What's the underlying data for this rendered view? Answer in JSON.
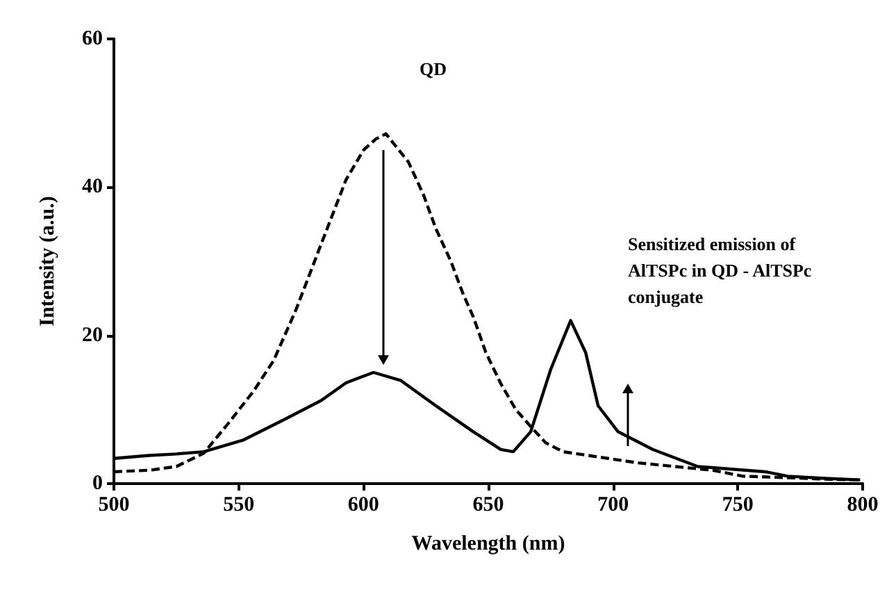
{
  "chart_data": {
    "type": "line",
    "xlabel": "Wavelength (nm)",
    "ylabel": "Intensity (a.u.)",
    "xlim": [
      500,
      800
    ],
    "xticks": [
      500,
      550,
      600,
      650,
      700,
      750,
      800
    ],
    "ylim": [
      0,
      60
    ],
    "yticks": [
      0,
      20,
      40,
      60
    ],
    "grid": false,
    "marker": "none",
    "series": [
      {
        "color": "#000000",
        "line_style": "dashed",
        "x": [
          500,
          514,
          525,
          536,
          546,
          556,
          564,
          573,
          582,
          593,
          600,
          605,
          609,
          613,
          618,
          624,
          629,
          635,
          640,
          644,
          649,
          655,
          661,
          667,
          673,
          680,
          690,
          698,
          710,
          725,
          740,
          752,
          770,
          785,
          799
        ],
        "values": [
          1.6,
          1.8,
          2.3,
          4.1,
          8.2,
          12.5,
          16.6,
          23.5,
          31.4,
          41,
          45,
          46.5,
          47.2,
          45.5,
          43.4,
          39,
          34.4,
          30,
          25.5,
          22.5,
          17.7,
          13.5,
          10,
          7.7,
          5.5,
          4.3,
          3.8,
          3.4,
          2.8,
          2.3,
          1.8,
          1,
          0.8,
          0.6,
          0.5
        ]
      },
      {
        "color": "#000000",
        "line_style": "solid",
        "x": [
          500,
          514,
          525,
          536,
          552,
          568,
          583,
          593,
          604,
          615,
          629,
          644,
          655,
          660,
          667,
          675,
          683,
          689,
          694,
          702,
          716,
          734,
          761,
          770,
          785,
          799
        ],
        "values": [
          3.4,
          3.8,
          4,
          4.3,
          5.9,
          8.6,
          11.2,
          13.6,
          15,
          13.9,
          10.5,
          7,
          4.6,
          4.3,
          7,
          15.4,
          22,
          17.7,
          10.5,
          7,
          4.6,
          2.3,
          1.6,
          1,
          0.7,
          0.5
        ]
      }
    ],
    "annotations": [
      "QD",
      "Sensitized emission of\nAlTSPc in QD - AlTSPc\nconjugate"
    ]
  }
}
